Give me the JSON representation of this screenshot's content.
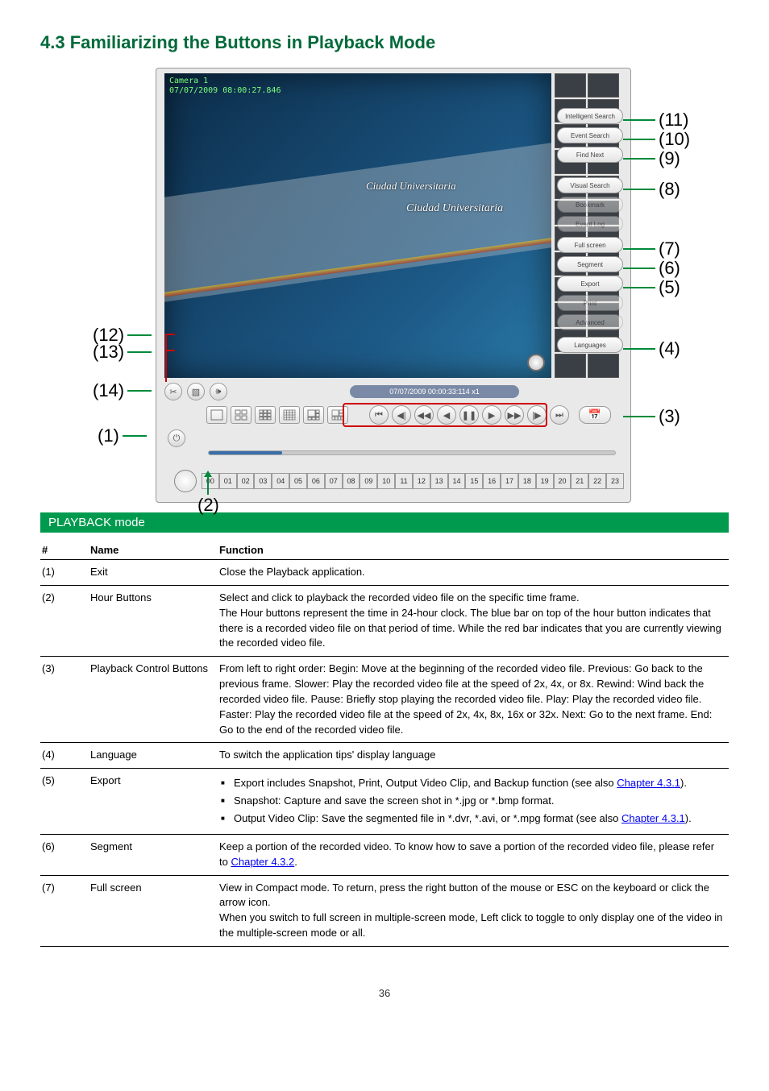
{
  "page_title": "4.3 Familiarizing the Buttons in Playback Mode",
  "caption_bar": "PLAYBACK mode",
  "overlay": {
    "camera_label": "Camera 1",
    "timestamp": "07/07/2009 08:00:27.846"
  },
  "video_signs": {
    "s1": "Ciudad Universitaria",
    "s2": "Ciudad Universitaria"
  },
  "side_buttons": {
    "b11": "Intelligent Search",
    "b10": "Event Search",
    "b9": "Find Next",
    "b8": "Visual Search",
    "bk": "Bookmark",
    "el": "Event Log",
    "b7": "Full screen",
    "b6": "Segment",
    "b5": "Export",
    "pr": "Print",
    "adv": "Advanced",
    "b4": "Languages"
  },
  "date_pill": "07/07/2009 00:00:33:114   x1",
  "timeline_hours": [
    "00",
    "01",
    "02",
    "03",
    "04",
    "05",
    "06",
    "07",
    "08",
    "09",
    "10",
    "11",
    "12",
    "13",
    "14",
    "15",
    "16",
    "17",
    "18",
    "19",
    "20",
    "21",
    "22",
    "23"
  ],
  "callouts": {
    "c1": "(1)",
    "c2": "(2)",
    "c3": "(3)",
    "c4": "(4)",
    "c5": "(5)",
    "c6": "(6)",
    "c7": "(7)",
    "c8": "(8)",
    "c9": "(9)",
    "c10": "(10)",
    "c11": "(11)",
    "c12": "(12)",
    "c13": "(13)",
    "c14": "(14)"
  },
  "table": {
    "headers": {
      "num": "#",
      "name": "Name",
      "func": "Function"
    },
    "rows": [
      {
        "num": "(1)",
        "name": "Exit",
        "func_html": "Close the Playback application."
      },
      {
        "num": "(2)",
        "name": "Hour Buttons",
        "func_html": "Select and click to playback the recorded video file on the specific time frame.<br>The Hour buttons represent the time in 24-hour clock. The blue bar on top of the hour button indicates that there is a recorded video file on that period of time. While the red bar indicates that you are currently viewing the recorded video file."
      },
      {
        "num": "(3)",
        "name": "Playback Control Buttons",
        "func_html": "From left to right order: Begin: Move at the beginning of the recorded video file. Previous: Go back to the previous frame. Slower: Play the recorded video file at the speed of 2x, 4x, or 8x. Rewind: Wind back the recorded video file. Pause: Briefly stop playing the recorded video file. Play: Play the recorded video file. Faster: Play the recorded video file at the speed of 2x, 4x, 8x, 16x or 32x. Next: Go to the next frame. End: Go to the end of the recorded video file."
      },
      {
        "num": "(4)",
        "name": "Language",
        "func_html": "To switch the application tips' display language"
      },
      {
        "num": "(5)",
        "name": "Export",
        "func_bullets": [
          "Export includes Snapshot, Print, Output Video Clip, and Backup function (see also <a class='link' data-name='link-ch-4-3-1' data-interactable='true'>Chapter 4.3.1</a>).",
          "Snapshot: Capture and save the screen shot in *.jpg or *.bmp format.",
          "Output Video Clip: Save the segmented file in *.dvr, *.avi, or *.mpg format (see also <a class='link' data-name='link-ch-4-3-1-b' data-interactable='true'>Chapter 4.3.1</a>)."
        ]
      },
      {
        "num": "(6)",
        "name": "Segment",
        "func_html": "Keep a portion of the recorded video. To know how to save a portion of the recorded video file, please refer to <a class='link' data-name='link-ch-4-3-2' data-interactable='true'>Chapter 4.3.2</a>."
      },
      {
        "num": "(7)",
        "name": "Full screen",
        "func_html": "View in Compact mode. To return, press the right button of the mouse or ESC on the keyboard or click the arrow icon.<br>When you switch to full screen in multiple-screen mode, Left click to toggle to only display one of the video in the multiple-screen mode or all."
      }
    ]
  },
  "page_number": "36",
  "colors": {
    "heading": "#006a3a",
    "caption_bg": "#009a4e",
    "callout_line": "#008a3a",
    "redbox": "#cc0000",
    "link": "#0000ee"
  }
}
